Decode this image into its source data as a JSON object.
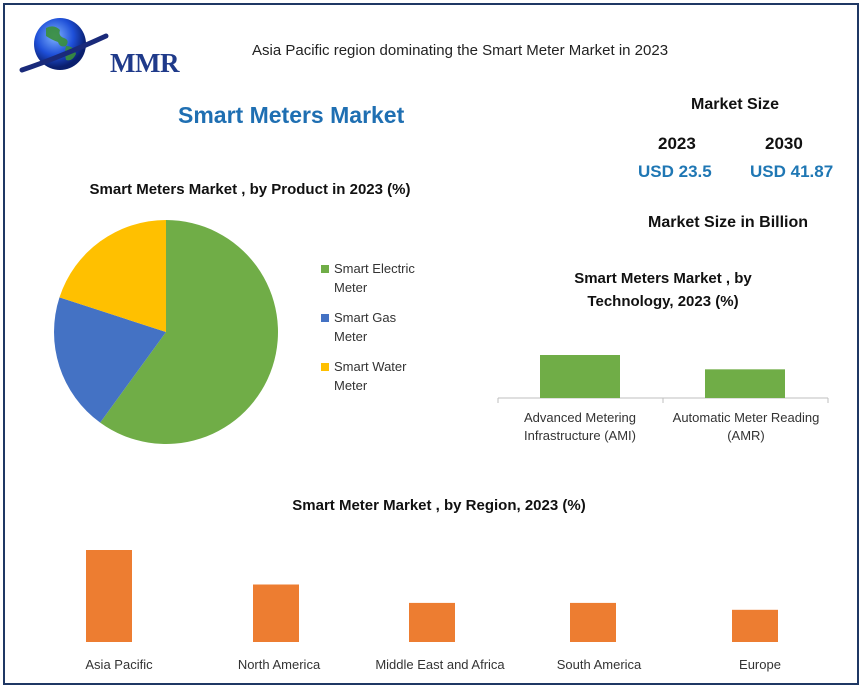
{
  "header": {
    "logo_text": "MMR",
    "subtitle": "Asia Pacific region dominating the Smart Meter Market in 2023",
    "main_title": "Smart Meters Market"
  },
  "market_size": {
    "title": "Market Size",
    "years": [
      "2023",
      "2030"
    ],
    "values": [
      "USD 23.5",
      "USD 41.87"
    ],
    "unit_note": "Market Size in Billion"
  },
  "colors": {
    "green": "#70ad47",
    "blue": "#4472c4",
    "yellow": "#ffc000",
    "orange": "#ed7d31",
    "title_blue": "#1f6fb2",
    "frame": "#1f3864"
  },
  "chart_data": [
    {
      "type": "pie",
      "title": "Smart Meters Market , by Product in 2023 (%)",
      "categories": [
        "Smart Electric Meter",
        "Smart Gas Meter",
        "Smart Water Meter"
      ],
      "values": [
        60,
        20,
        20
      ],
      "colors": [
        "#70ad47",
        "#4472c4",
        "#ffc000"
      ],
      "legend": "right"
    },
    {
      "type": "bar",
      "title": "Smart Meters Market , by Technology, 2023 (%)",
      "categories": [
        "Advanced Metering Infrastructure (AMI)",
        "Automatic Meter Reading (AMR)"
      ],
      "values": [
        60,
        40
      ],
      "color": "#70ad47"
    },
    {
      "type": "bar",
      "title": "Smart Meter Market , by Region, 2023 (%)",
      "categories": [
        "Asia Pacific",
        "North America",
        "Middle East and Africa",
        "South America",
        "Europe"
      ],
      "values": [
        40,
        25,
        17,
        17,
        14
      ],
      "color": "#ed7d31"
    }
  ]
}
